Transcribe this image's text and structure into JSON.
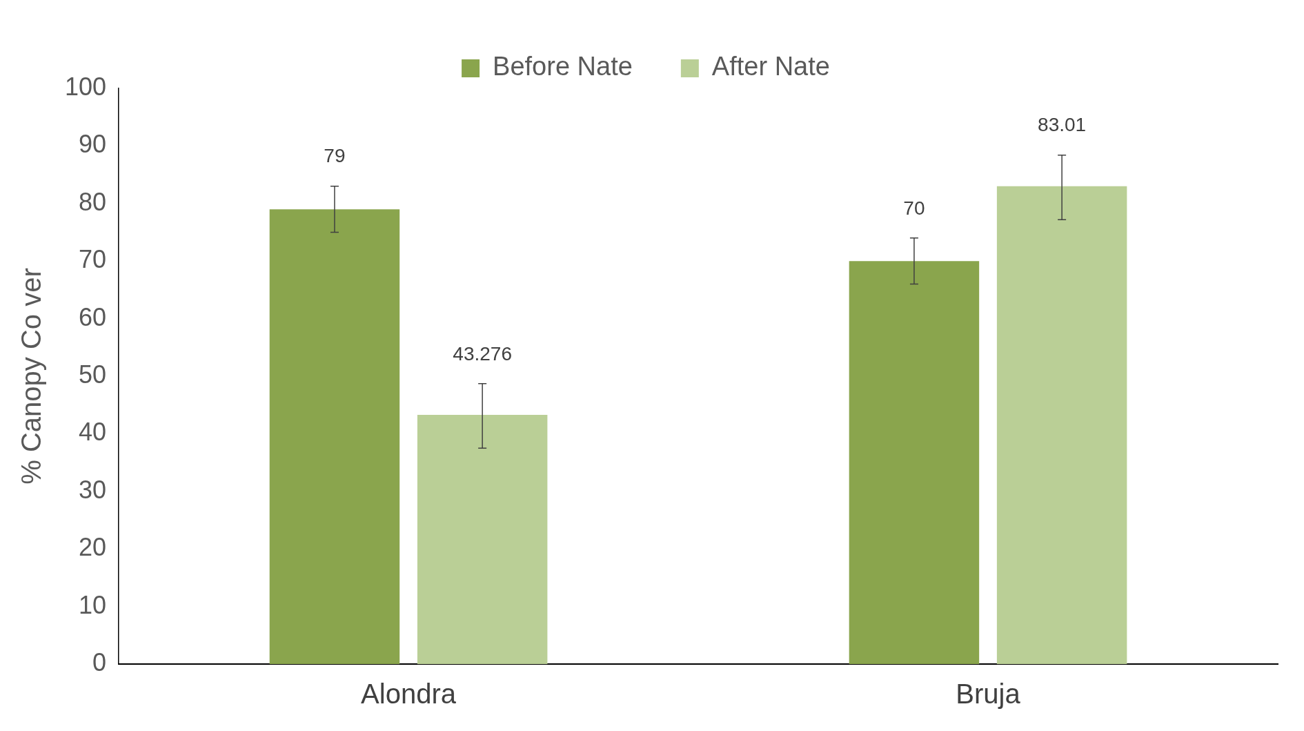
{
  "chart_data": {
    "type": "bar",
    "ylabel": "% Canopy Co ver",
    "categories": [
      "Alondra",
      "Bruja"
    ],
    "series": [
      {
        "name": "Before Nate",
        "color": "#8aa54d",
        "values": [
          79,
          70
        ],
        "errors": [
          4,
          4
        ]
      },
      {
        "name": "After Nate",
        "color": "#bacf96",
        "values": [
          43.276,
          83.01
        ],
        "errors": [
          [
            37.5,
            48.7
          ],
          [
            77.2,
            88.4
          ]
        ]
      }
    ],
    "ylim": [
      0,
      100
    ],
    "yticks": [
      0,
      10,
      20,
      30,
      40,
      50,
      60,
      70,
      80,
      90,
      100
    ],
    "grid": false,
    "legend": "top",
    "data_labels": true
  }
}
